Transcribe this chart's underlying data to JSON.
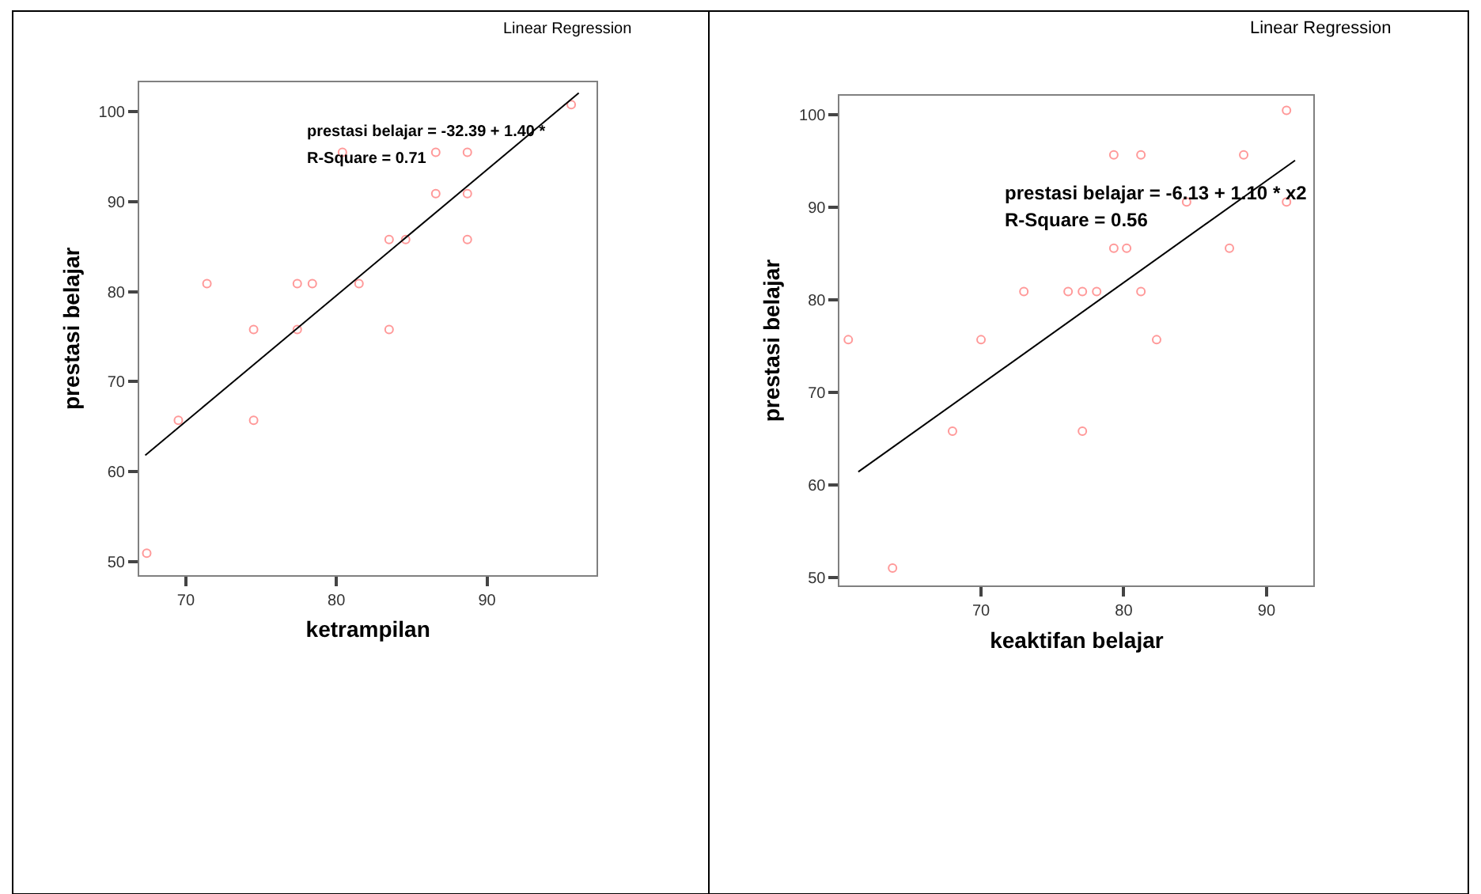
{
  "chart_data": [
    {
      "type": "scatter",
      "title": "Linear Regression",
      "xlabel": "ketrampilan",
      "ylabel": "prestasi belajar",
      "xlim": [
        66.9,
        97.3
      ],
      "ylim": [
        48.5,
        103.3
      ],
      "xticks": [
        70,
        80,
        90
      ],
      "yticks": [
        50,
        60,
        70,
        80,
        90,
        100
      ],
      "annotations": [
        "prestasi belajar = -32.39 + 1.40 *",
        "R-Square = 0.71"
      ],
      "series": [
        {
          "marker": "circle",
          "color": "#ff9999",
          "x": [
            67.4,
            69.5,
            71.4,
            74.5,
            74.5,
            77.4,
            77.4,
            78.4,
            80.4,
            81.5,
            83.5,
            83.5,
            84.6,
            86.6,
            86.6,
            88.7,
            88.7,
            88.7,
            95.6
          ],
          "values": [
            50.9,
            65.7,
            80.9,
            75.8,
            65.7,
            80.9,
            75.8,
            80.9,
            95.5,
            80.9,
            85.8,
            75.8,
            85.8,
            95.5,
            90.9,
            95.5,
            90.9,
            85.8,
            100.8
          ]
        },
        {
          "type": "line",
          "color": "#000000",
          "x": [
            67.3,
            96.1
          ],
          "values": [
            61.8,
            102.1
          ]
        }
      ]
    },
    {
      "type": "scatter",
      "title": "Linear Regression",
      "xlabel": "keaktifan belajar",
      "ylabel": "prestasi belajar",
      "xlim": [
        60.1,
        93.3
      ],
      "ylim": [
        49.1,
        102.1
      ],
      "xticks": [
        70,
        80,
        90
      ],
      "yticks": [
        50,
        60,
        70,
        80,
        90,
        100
      ],
      "annotations": [
        "prestasi belajar = -6.13 + 1.10 * x2",
        "R-Square = 0.56"
      ],
      "series": [
        {
          "marker": "circle",
          "color": "#ff9999",
          "x": [
            60.7,
            63.8,
            68.0,
            70.0,
            73.0,
            76.1,
            77.1,
            77.1,
            78.1,
            79.3,
            79.3,
            80.2,
            81.2,
            81.2,
            82.3,
            84.4,
            87.4,
            88.4,
            91.4,
            91.4
          ],
          "values": [
            75.7,
            51.0,
            65.8,
            75.7,
            80.9,
            80.9,
            80.9,
            65.8,
            80.9,
            95.7,
            85.6,
            85.6,
            95.7,
            80.9,
            75.7,
            90.6,
            85.6,
            95.7,
            100.5,
            90.6
          ]
        },
        {
          "type": "line",
          "color": "#000000",
          "x": [
            61.4,
            92.0
          ],
          "values": [
            61.4,
            95.1
          ]
        }
      ]
    }
  ]
}
